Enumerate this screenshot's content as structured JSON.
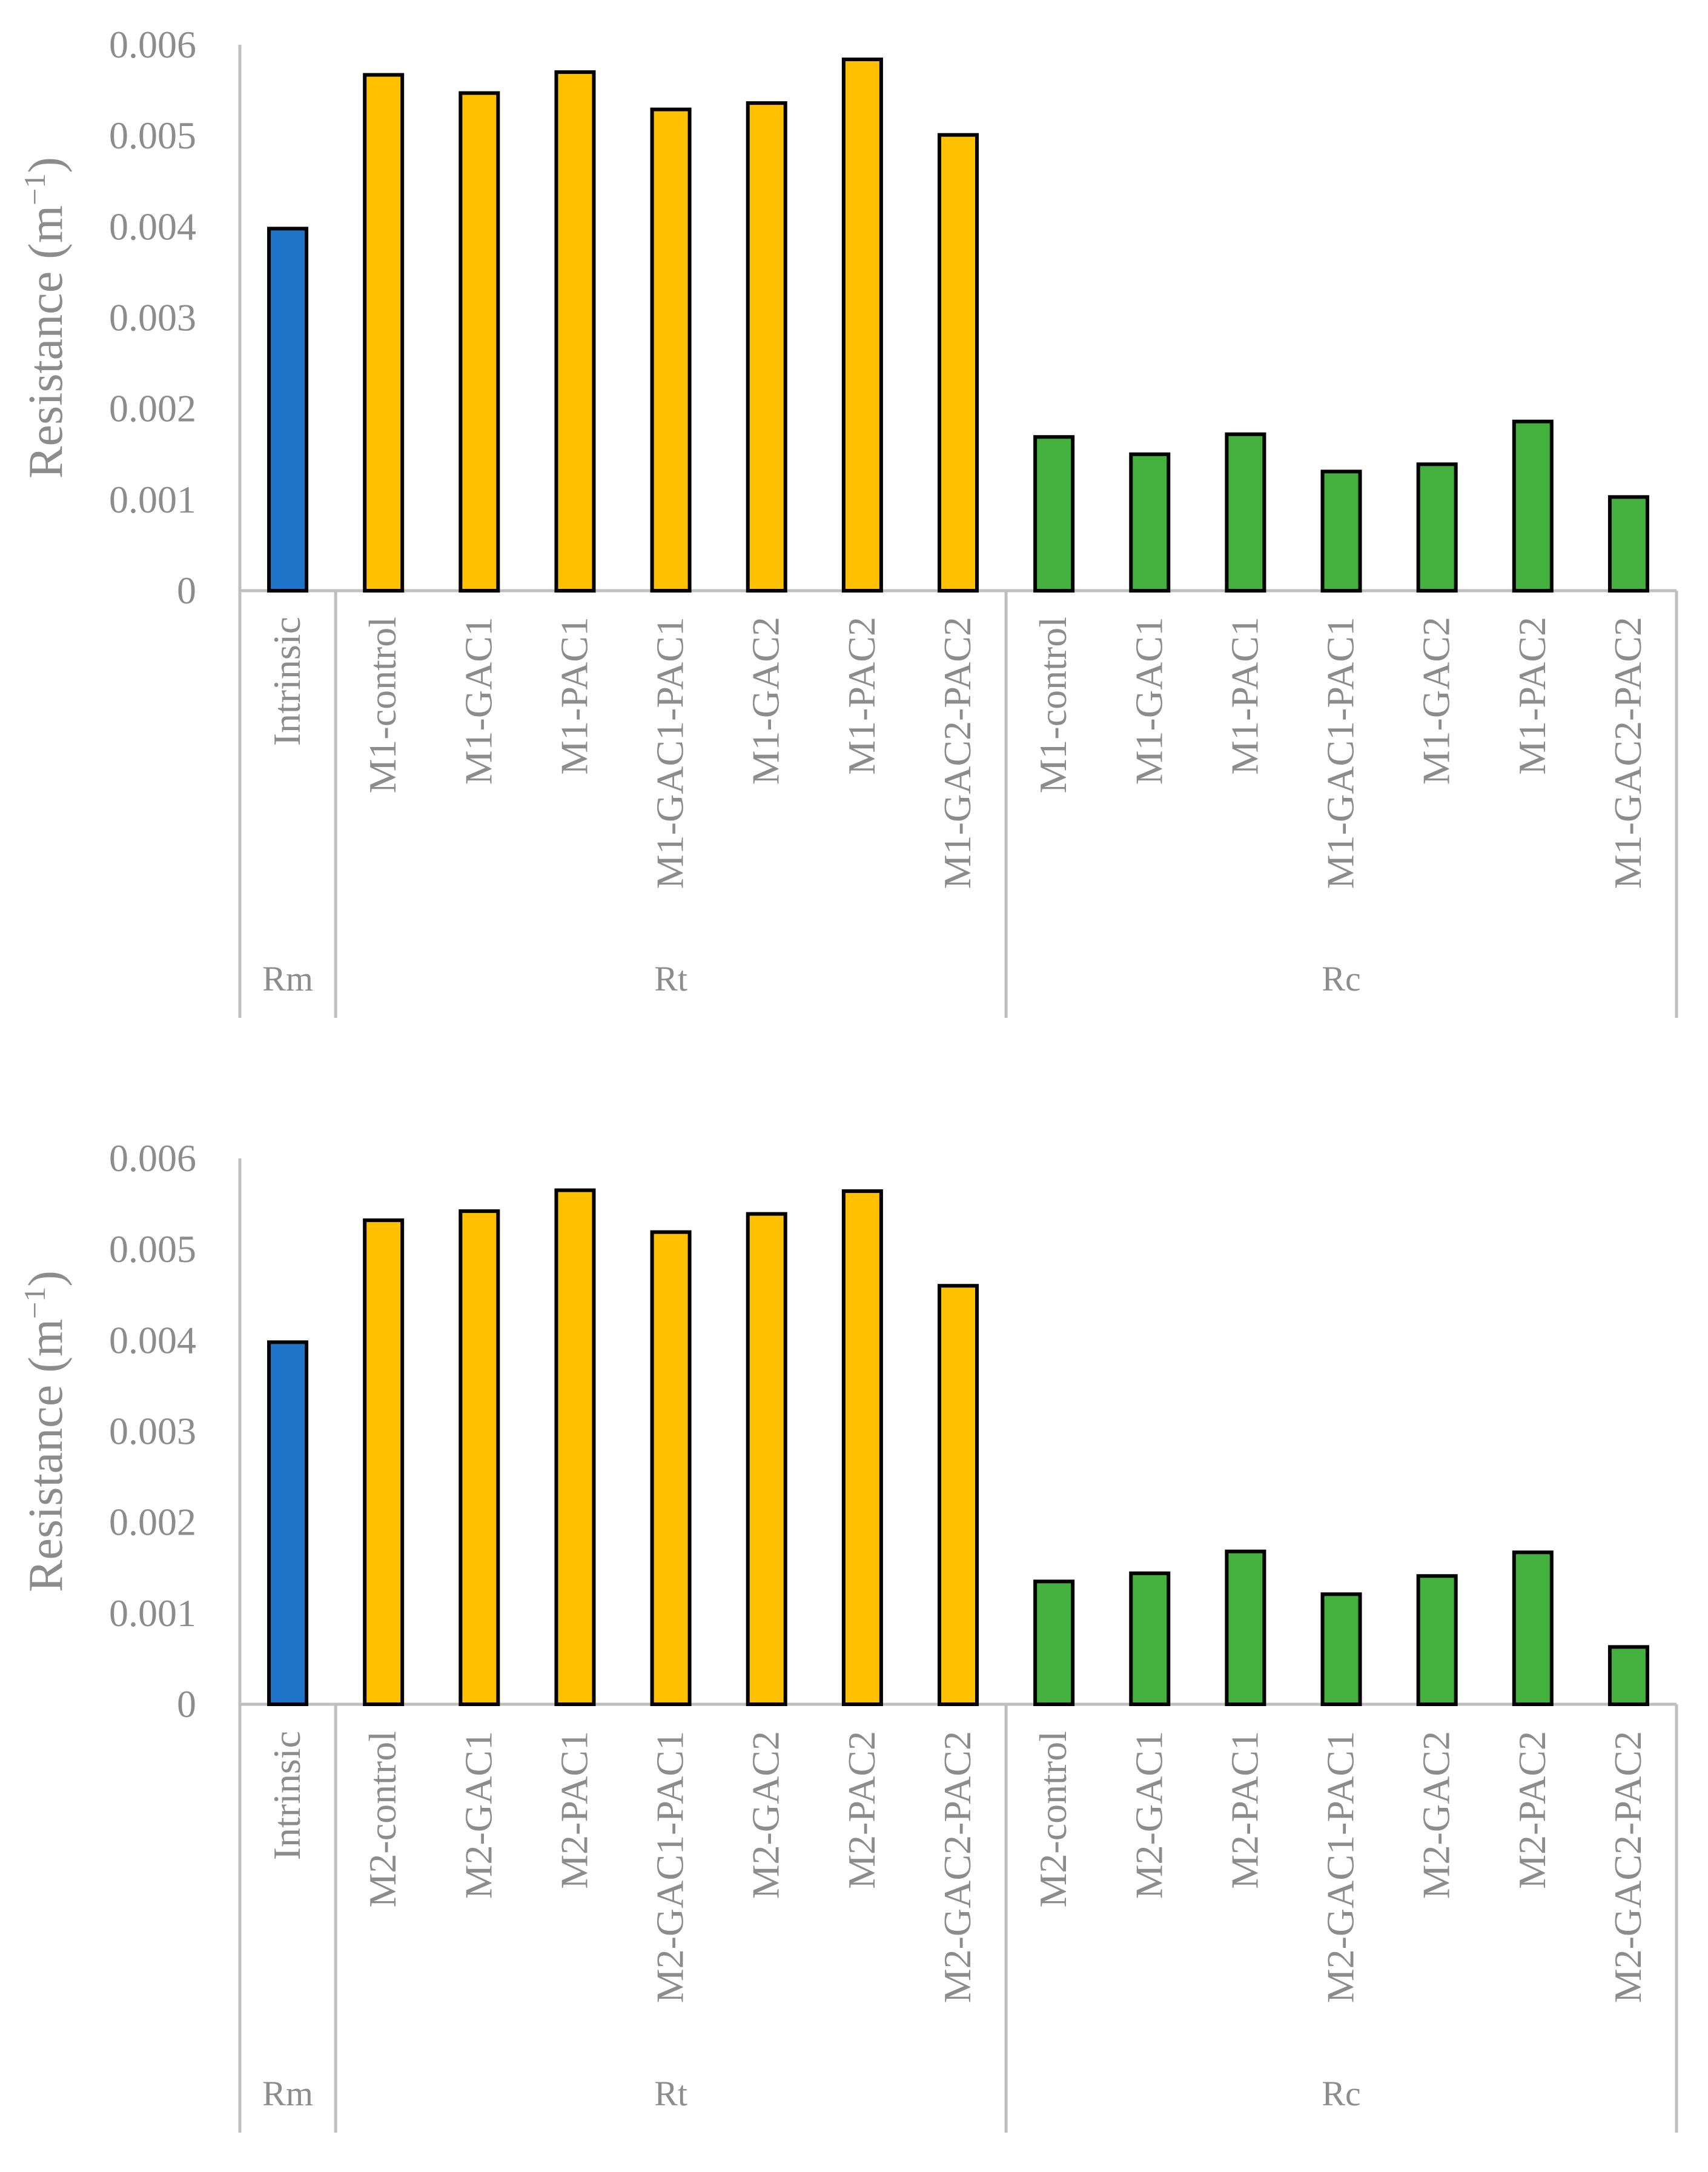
{
  "colors": {
    "Rm": "#1f73c8",
    "Rt": "#ffc000",
    "Rc": "#44b03d",
    "axis": "#bfbfbf",
    "text": "#8c8c8c"
  },
  "chart_data": [
    {
      "type": "bar",
      "title": "",
      "xlabel": "",
      "ylabel": "Resistance (m",
      "ylabel_sup": "−1",
      "ylabel_close": ")",
      "ylim": [
        0,
        0.006
      ],
      "yticks": [
        "0",
        "0.001",
        "0.002",
        "0.003",
        "0.004",
        "0.005",
        "0.006"
      ],
      "groups": [
        {
          "name": "Rm",
          "categories": [
            "Intrinsic"
          ],
          "values": [
            0.00398
          ]
        },
        {
          "name": "Rt",
          "categories": [
            "M1-control",
            "M1-GAC1",
            "M1-PAC1",
            "M1-GAC1-PAC1",
            "M1-GAC2",
            "M1-PAC2",
            "M1-GAC2-PAC2"
          ],
          "values": [
            0.00567,
            0.00547,
            0.0057,
            0.00529,
            0.00536,
            0.00584,
            0.00501
          ]
        },
        {
          "name": "Rc",
          "categories": [
            "M1-control",
            "M1-GAC1",
            "M1-PAC1",
            "M1-GAC1-PAC1",
            "M1-GAC2",
            "M1-PAC2",
            "M1-GAC2-PAC2"
          ],
          "values": [
            0.00169,
            0.0015,
            0.00172,
            0.00131,
            0.00139,
            0.00186,
            0.00103
          ]
        }
      ]
    },
    {
      "type": "bar",
      "title": "",
      "xlabel": "",
      "ylabel": "Resistance (m",
      "ylabel_sup": "−1",
      "ylabel_close": ")",
      "ylim": [
        0,
        0.006
      ],
      "yticks": [
        "0",
        "0.001",
        "0.002",
        "0.003",
        "0.004",
        "0.005",
        "0.006"
      ],
      "groups": [
        {
          "name": "Rm",
          "categories": [
            "Intrinsic"
          ],
          "values": [
            0.00398
          ]
        },
        {
          "name": "Rt",
          "categories": [
            "M2-control",
            "M2-GAC1",
            "M2-PAC1",
            "M2-GAC1-PAC1",
            "M2-GAC2",
            "M2-PAC2",
            "M2-GAC2-PAC2"
          ],
          "values": [
            0.00532,
            0.00542,
            0.00565,
            0.00519,
            0.00539,
            0.00564,
            0.0046
          ]
        },
        {
          "name": "Rc",
          "categories": [
            "M2-control",
            "M2-GAC1",
            "M2-PAC1",
            "M2-GAC1-PAC1",
            "M2-GAC2",
            "M2-PAC2",
            "M2-GAC2-PAC2"
          ],
          "values": [
            0.00135,
            0.00144,
            0.00168,
            0.00121,
            0.00141,
            0.00167,
            0.00063
          ]
        }
      ]
    }
  ]
}
